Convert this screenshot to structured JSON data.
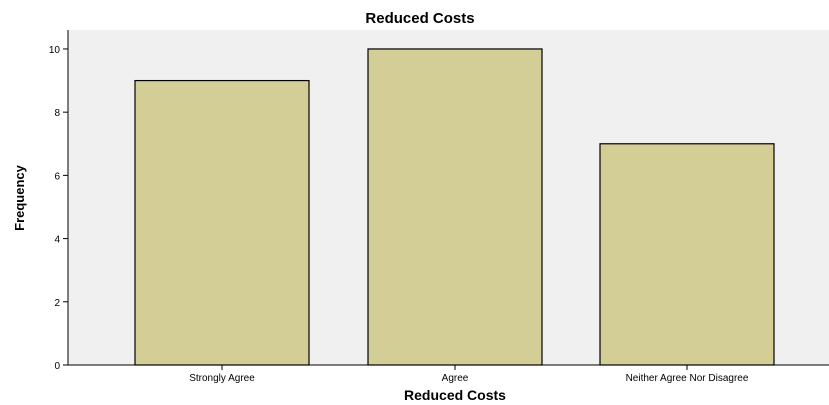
{
  "chart_data": {
    "type": "bar",
    "title": "Reduced Costs",
    "xlabel": "Reduced Costs",
    "ylabel": "Frequency",
    "categories": [
      "Strongly Agree",
      "Agree",
      "Neither Agree Nor Disagree"
    ],
    "values": [
      9,
      10,
      7
    ],
    "ylim": [
      0,
      10.6
    ],
    "yticks": [
      0,
      2,
      4,
      6,
      8,
      10
    ],
    "grid": false,
    "colors": {
      "bar_fill": "#d3cd96",
      "bar_stroke": "#000000",
      "plot_background": "#f0f0f0"
    }
  }
}
